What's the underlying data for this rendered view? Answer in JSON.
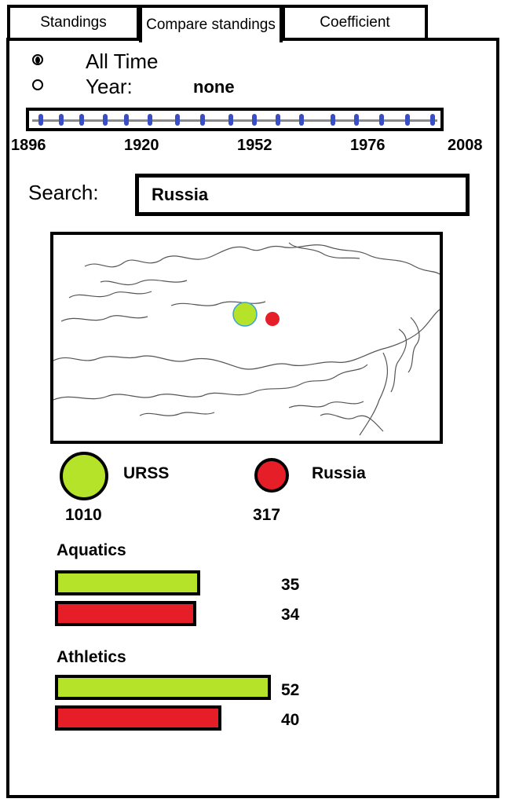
{
  "tabs": [
    {
      "label": "Standings",
      "active": false
    },
    {
      "label": "Compare standings",
      "active": true
    },
    {
      "label": "Coefficient",
      "active": false
    }
  ],
  "filters": {
    "all_time_label": "All Time",
    "year_label": "Year:",
    "year_value": "none",
    "selected": "all_time"
  },
  "timeline": {
    "labels": [
      "1896",
      "1920",
      "1952",
      "1976",
      "2008"
    ],
    "start": 1896,
    "end": 2008
  },
  "search": {
    "label": "Search:",
    "value": "Russia"
  },
  "comparison": {
    "countries": [
      {
        "name": "URSS",
        "total": "1010",
        "color": "#b5e32a"
      },
      {
        "name": "Russia",
        "total": "317",
        "color": "#e51e27"
      }
    ],
    "sports": [
      {
        "name": "Aquatics",
        "values": [
          35,
          34
        ]
      },
      {
        "name": "Athletics",
        "values": [
          52,
          40
        ]
      }
    ]
  },
  "colors": {
    "primary_country": "#b5e32a",
    "secondary_country": "#e51e27",
    "timeline_ticks": "#3b4fc4"
  },
  "icons": {
    "map": "world-map-icon",
    "radio": "radio-button-icon"
  }
}
